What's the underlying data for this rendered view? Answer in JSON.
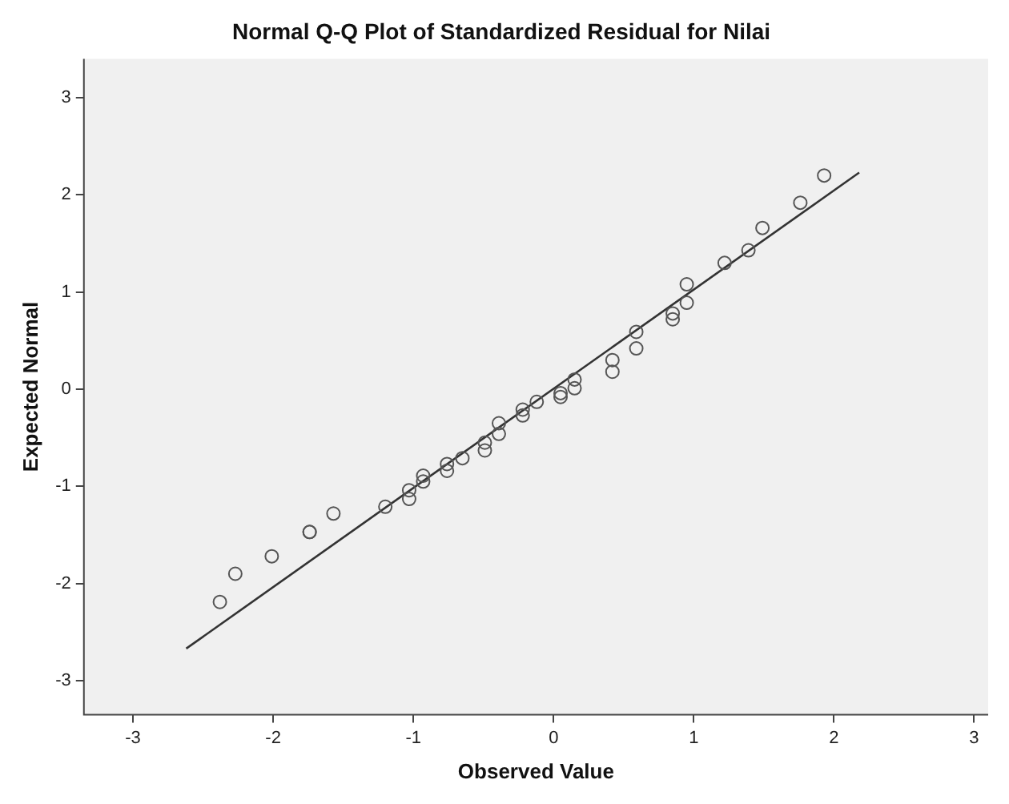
{
  "chart_data": {
    "type": "scatter",
    "title": "Normal Q-Q Plot of Standardized Residual for Nilai",
    "xlabel": "Observed Value",
    "ylabel": "Expected Normal",
    "xlim": [
      -3.35,
      3.1
    ],
    "ylim": [
      -3.35,
      3.4
    ],
    "xticks": [
      -3,
      -2,
      -1,
      0,
      1,
      2,
      3
    ],
    "yticks": [
      -3,
      -2,
      -1,
      0,
      1,
      2,
      3
    ],
    "grid": false,
    "legend": false,
    "marker": "circle",
    "series": [
      {
        "type": "scatter",
        "color": "#555555",
        "x": [
          -2.38,
          -2.27,
          -2.01,
          -1.74,
          -1.74,
          -1.57,
          -1.2,
          -1.03,
          -1.03,
          -0.93,
          -0.93,
          -0.76,
          -0.76,
          -0.65,
          -0.49,
          -0.49,
          -0.39,
          -0.39,
          -0.22,
          -0.22,
          -0.12,
          0.05,
          0.05,
          0.15,
          0.15,
          0.42,
          0.42,
          0.59,
          0.59,
          0.85,
          0.85,
          0.95,
          0.95,
          1.22,
          1.39,
          1.49,
          1.76,
          1.93
        ],
        "values": [
          -2.19,
          -1.9,
          -1.72,
          -1.47,
          -1.47,
          -1.28,
          -1.21,
          -1.13,
          -1.04,
          -0.95,
          -0.89,
          -0.84,
          -0.77,
          -0.71,
          -0.63,
          -0.55,
          -0.46,
          -0.35,
          -0.27,
          -0.21,
          -0.13,
          -0.08,
          -0.04,
          0.01,
          0.1,
          0.18,
          0.3,
          0.42,
          0.59,
          0.72,
          0.78,
          0.89,
          1.08,
          1.3,
          1.43,
          1.66,
          1.92,
          2.2
        ]
      },
      {
        "type": "line",
        "color": "#333333",
        "marker": "none",
        "line_style": "solid",
        "x": [
          -2.62,
          2.18
        ],
        "values": [
          -2.67,
          2.23
        ]
      }
    ]
  }
}
